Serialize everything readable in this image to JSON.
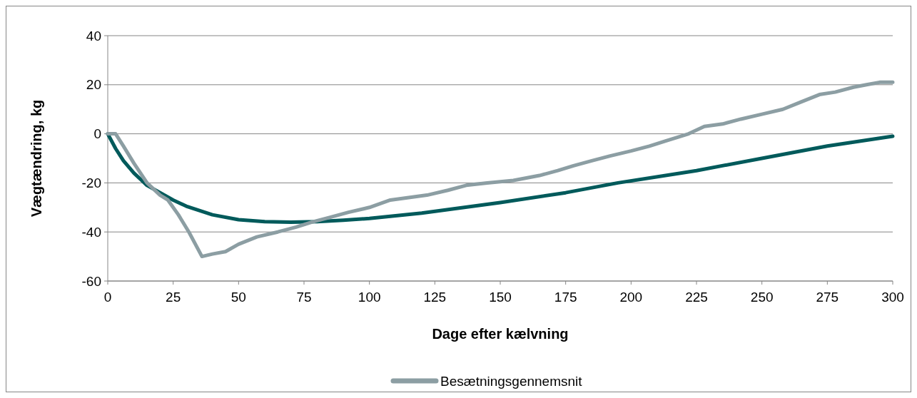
{
  "chart_data": {
    "type": "line",
    "xlabel": "Dage efter kælvning",
    "ylabel": "Vægtændring, kg",
    "xlim": [
      0,
      300
    ],
    "xticks": [
      0,
      25,
      50,
      75,
      100,
      125,
      150,
      175,
      200,
      225,
      250,
      275,
      300
    ],
    "ylim": [
      -60,
      40
    ],
    "yticks": [
      -60,
      -40,
      -20,
      0,
      20,
      40
    ],
    "grid": "y",
    "legend": "bottom",
    "line_style": "solid",
    "marker": "none",
    "series": [
      {
        "color": "#005a5b",
        "x": [
          0,
          3,
          6,
          10,
          15,
          20,
          25,
          30,
          40,
          50,
          60,
          70,
          80,
          90,
          100,
          120,
          150,
          175,
          195,
          225,
          250,
          275,
          300
        ],
        "values": [
          0,
          -6,
          -11,
          -16,
          -21,
          -24,
          -27,
          -29.5,
          -33,
          -35,
          -35.8,
          -36,
          -35.8,
          -35.2,
          -34.5,
          -32.3,
          -28,
          -24,
          -20,
          -15,
          -10,
          -5,
          -1
        ]
      },
      {
        "name": "Besætningsgennemsnit",
        "color": "#8c9ea3",
        "x": [
          0,
          3,
          6,
          10,
          15,
          20,
          23,
          27,
          31,
          34,
          36,
          40,
          45,
          50,
          57,
          65,
          72,
          78,
          85,
          92,
          100,
          108,
          115,
          122,
          130,
          137,
          145,
          155,
          165,
          172,
          178,
          185,
          192,
          200,
          207,
          213,
          222,
          228,
          235,
          242,
          250,
          258,
          265,
          272,
          278,
          285,
          290,
          295,
          300
        ],
        "values": [
          0,
          0,
          -5,
          -12,
          -20,
          -25,
          -27,
          -33,
          -40,
          -46,
          -50,
          -49,
          -48,
          -45,
          -42,
          -40,
          -38,
          -36,
          -34,
          -32,
          -30,
          -27,
          -26,
          -25,
          -23,
          -21,
          -20,
          -19,
          -17,
          -15,
          -13,
          -11,
          -9,
          -7,
          -5,
          -3,
          0,
          3,
          4,
          6,
          8,
          10,
          13,
          16,
          17,
          19,
          20,
          21,
          21
        ]
      }
    ]
  }
}
